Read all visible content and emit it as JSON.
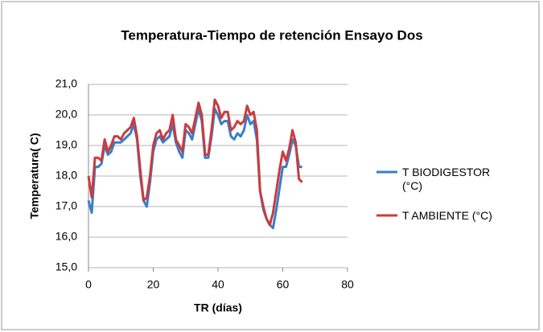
{
  "chart_data": {
    "type": "line",
    "title": "Temperatura-Tiempo de retención Ensayo Dos",
    "x_label": "TR (días)",
    "y_label": "Temperatura( C)",
    "x": [
      0,
      1,
      2,
      3,
      4,
      5,
      6,
      7,
      8,
      9,
      10,
      11,
      12,
      13,
      14,
      15,
      16,
      17,
      18,
      19,
      20,
      21,
      22,
      23,
      24,
      25,
      26,
      27,
      28,
      29,
      30,
      31,
      32,
      33,
      34,
      35,
      36,
      37,
      38,
      39,
      40,
      41,
      42,
      43,
      44,
      45,
      46,
      47,
      48,
      49,
      50,
      51,
      52,
      53,
      54,
      55,
      56,
      57,
      58,
      59,
      60,
      61,
      62,
      63,
      64,
      65,
      66
    ],
    "series": [
      {
        "name": "T BIODIGESTOR (°C)",
        "color": "#3a7dc9",
        "values": [
          17.2,
          16.8,
          18.3,
          18.3,
          18.4,
          19.0,
          18.7,
          18.8,
          19.1,
          19.1,
          19.1,
          19.2,
          19.3,
          19.4,
          19.7,
          19.2,
          18.0,
          17.2,
          17.0,
          17.8,
          18.8,
          19.2,
          19.3,
          19.1,
          19.2,
          19.3,
          19.7,
          19.1,
          18.8,
          18.6,
          19.5,
          19.4,
          19.2,
          19.7,
          20.2,
          19.8,
          18.6,
          18.6,
          19.3,
          20.2,
          20.0,
          19.7,
          19.8,
          19.8,
          19.3,
          19.2,
          19.4,
          19.3,
          19.5,
          20.0,
          19.7,
          19.8,
          19.2,
          17.5,
          16.9,
          16.6,
          16.4,
          16.3,
          16.9,
          17.6,
          18.3,
          18.3,
          18.7,
          19.2,
          19.0,
          18.3,
          18.3
        ]
      },
      {
        "name": "T AMBIENTE (°C)",
        "color": "#c83c40",
        "values": [
          18.0,
          17.3,
          18.6,
          18.6,
          18.5,
          19.2,
          18.8,
          19.0,
          19.3,
          19.3,
          19.2,
          19.4,
          19.5,
          19.6,
          19.9,
          19.3,
          18.2,
          17.2,
          17.3,
          18.0,
          19.0,
          19.4,
          19.5,
          19.2,
          19.4,
          19.5,
          20.0,
          19.2,
          19.0,
          18.8,
          19.7,
          19.6,
          19.4,
          19.9,
          20.4,
          20.0,
          18.7,
          18.7,
          19.5,
          20.5,
          20.3,
          19.9,
          20.1,
          20.1,
          19.5,
          19.6,
          19.8,
          19.7,
          19.8,
          20.3,
          20.0,
          20.1,
          19.5,
          17.5,
          17.0,
          16.6,
          16.4,
          16.8,
          17.5,
          18.2,
          18.8,
          18.5,
          18.9,
          19.5,
          19.1,
          17.9,
          17.8
        ]
      }
    ],
    "xlim": [
      0,
      80
    ],
    "xticks": [
      0,
      20,
      40,
      60,
      80
    ],
    "ylim": [
      15,
      21
    ],
    "yticks": [
      {
        "value": 15,
        "label": "15,0"
      },
      {
        "value": 16,
        "label": "16,0"
      },
      {
        "value": 17,
        "label": "17,0"
      },
      {
        "value": 18,
        "label": "18,0"
      },
      {
        "value": 19,
        "label": "19,0"
      },
      {
        "value": 20,
        "label": "20,0"
      },
      {
        "value": 21,
        "label": "21,0"
      }
    ],
    "grid": true,
    "legend": "right"
  }
}
